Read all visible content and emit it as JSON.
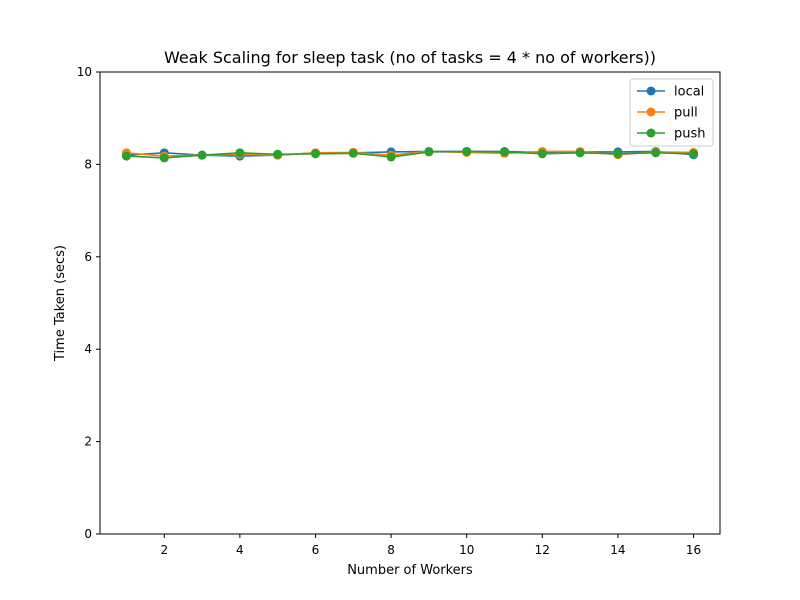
{
  "chart_data": {
    "type": "line",
    "title": "Weak Scaling for sleep task (no of tasks = 4 * no of workers))",
    "xlabel": "Number of Workers",
    "ylabel": "Time Taken (secs)",
    "xlim": [
      0.3,
      16.7
    ],
    "ylim": [
      0,
      10
    ],
    "xticks": [
      2,
      4,
      6,
      8,
      10,
      12,
      14,
      16
    ],
    "yticks": [
      0,
      2,
      4,
      6,
      8,
      10
    ],
    "grid": false,
    "legend_position": "top-right",
    "x": [
      1,
      2,
      3,
      4,
      5,
      6,
      7,
      8,
      9,
      10,
      11,
      12,
      13,
      14,
      15,
      16
    ],
    "series": [
      {
        "name": "local",
        "color": "#1f77b4",
        "marker": "circle",
        "values": [
          8.2,
          8.25,
          8.2,
          8.18,
          8.2,
          8.25,
          8.25,
          8.27,
          8.28,
          8.28,
          8.28,
          8.26,
          8.27,
          8.27,
          8.28,
          8.21
        ]
      },
      {
        "name": "pull",
        "color": "#ff7f0e",
        "marker": "circle",
        "values": [
          8.25,
          8.18,
          8.2,
          8.22,
          8.2,
          8.25,
          8.26,
          8.2,
          8.28,
          8.26,
          8.24,
          8.28,
          8.28,
          8.21,
          8.27,
          8.26
        ]
      },
      {
        "name": "push",
        "color": "#2ca02c",
        "marker": "circle",
        "values": [
          8.18,
          8.14,
          8.2,
          8.25,
          8.22,
          8.23,
          8.24,
          8.16,
          8.27,
          8.28,
          8.27,
          8.23,
          8.25,
          8.23,
          8.25,
          8.23
        ]
      }
    ]
  }
}
